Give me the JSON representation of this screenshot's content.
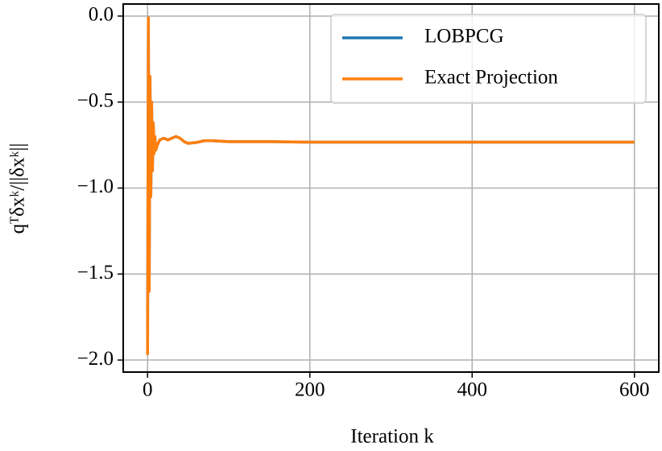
{
  "chart_data": {
    "type": "line",
    "x_label": "Iteration k",
    "y_label": "qᵀδxᵏ/||δxᵏ||",
    "x": [
      0,
      1,
      2,
      3,
      4,
      5,
      6,
      7,
      8,
      9,
      10,
      12,
      15,
      20,
      25,
      30,
      35,
      40,
      45,
      50,
      60,
      70,
      80,
      100,
      150,
      200,
      300,
      400,
      500,
      600
    ],
    "series": [
      {
        "name": "LOBPCG",
        "color": "#1f77b4",
        "values": [
          -1.97,
          -0.01,
          -1.6,
          -0.35,
          -1.05,
          -0.5,
          -0.9,
          -0.62,
          -0.8,
          -0.7,
          -0.78,
          -0.75,
          -0.72,
          -0.71,
          -0.72,
          -0.71,
          -0.7,
          -0.71,
          -0.73,
          -0.74,
          -0.735,
          -0.725,
          -0.725,
          -0.73,
          -0.73,
          -0.733,
          -0.733,
          -0.733,
          -0.733,
          -0.733
        ]
      },
      {
        "name": "Exact Projection",
        "color": "#ff7f0e",
        "values": [
          -1.97,
          -0.01,
          -1.6,
          -0.35,
          -1.05,
          -0.5,
          -0.9,
          -0.62,
          -0.8,
          -0.7,
          -0.78,
          -0.75,
          -0.72,
          -0.71,
          -0.72,
          -0.71,
          -0.7,
          -0.71,
          -0.73,
          -0.74,
          -0.735,
          -0.725,
          -0.725,
          -0.73,
          -0.73,
          -0.733,
          -0.733,
          -0.733,
          -0.733,
          -0.733
        ]
      }
    ],
    "xlim": [
      -30,
      630
    ],
    "ylim": [
      -2.07,
      0.07
    ],
    "xticks": [
      0,
      200,
      400,
      600
    ],
    "yticks": [
      {
        "value": 0,
        "label": "0.0"
      },
      {
        "value": -0.5,
        "label": "−0.5"
      },
      {
        "value": -1,
        "label": "−1.0"
      },
      {
        "value": -1.5,
        "label": "−1.5"
      },
      {
        "value": -2,
        "label": "−2.0"
      }
    ],
    "grid": true,
    "legend": "upper right"
  }
}
